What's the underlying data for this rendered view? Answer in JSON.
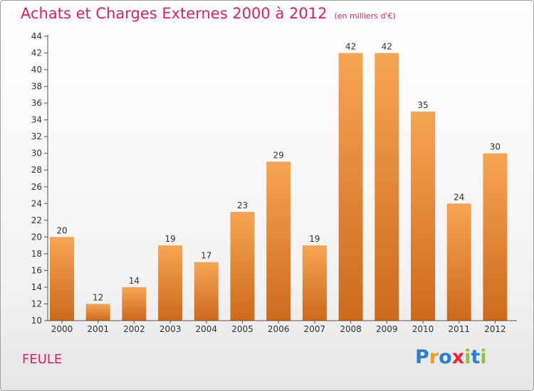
{
  "chart_data": {
    "type": "bar",
    "title": "Achats et Charges Externes 2000 à 2012",
    "subtitle": "(en milliers d'€)",
    "categories": [
      "2000",
      "2001",
      "2002",
      "2003",
      "2004",
      "2005",
      "2006",
      "2007",
      "2008",
      "2009",
      "2010",
      "2011",
      "2012"
    ],
    "values": [
      20,
      12,
      14,
      19,
      17,
      23,
      29,
      19,
      42,
      42,
      35,
      24,
      30
    ],
    "ylim": [
      10,
      44
    ],
    "yticks": [
      10,
      12,
      14,
      16,
      18,
      20,
      22,
      24,
      26,
      28,
      30,
      32,
      34,
      36,
      38,
      40,
      42,
      44
    ],
    "grid": false,
    "bar_color_top": "#f7a552",
    "bar_color_bottom": "#cc6a1c"
  },
  "commune": "FEULE",
  "logo": {
    "letters": [
      "P",
      "r",
      "o",
      "x",
      "i",
      "t",
      "i"
    ],
    "colors": [
      "#2a7fd4",
      "#f29a1f",
      "#2a7fd4",
      "#e8253a",
      "#8cc63f",
      "#2a7fd4",
      "#8cc63f"
    ]
  }
}
